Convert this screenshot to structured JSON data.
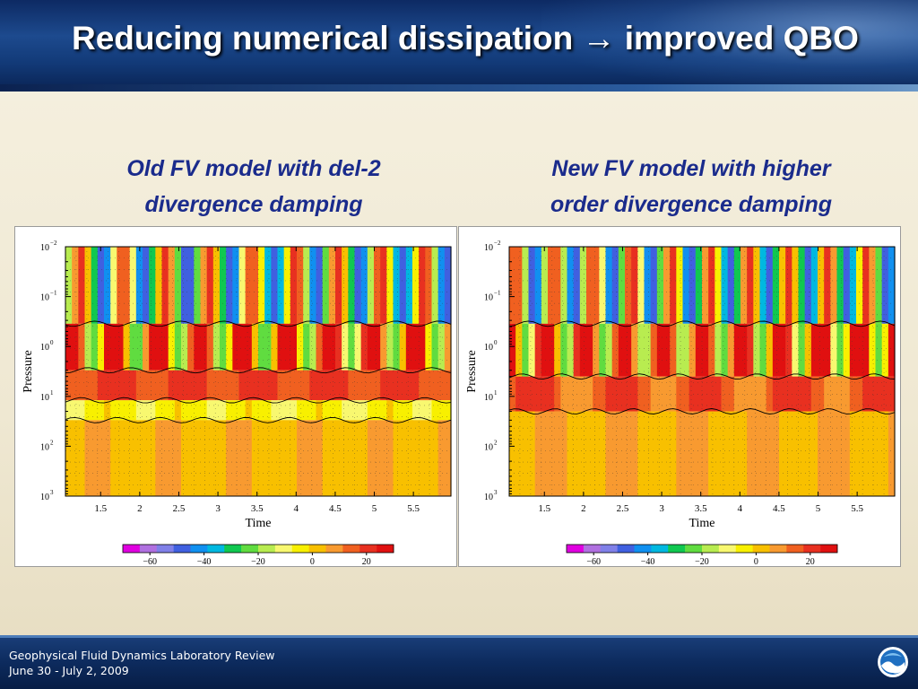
{
  "slide": {
    "title": "Reducing numerical dissipation → improved QBO",
    "footer_line1": "Geophysical Fluid Dynamics Laboratory Review",
    "footer_line2": "June 30 - July 2, 2009",
    "logo_icon": "noaa-logo-icon"
  },
  "panels": [
    {
      "subtitle_line1": "Old FV model with del-2",
      "subtitle_line2": "divergence damping"
    },
    {
      "subtitle_line1": "New FV model with higher",
      "subtitle_line2": "order divergence damping"
    }
  ],
  "chart_data": [
    {
      "type": "heatmap",
      "title": "",
      "xlabel": "Time",
      "ylabel": "Pressure",
      "x_ticks": [
        "1.5",
        "2",
        "2.5",
        "3",
        "3.5",
        "4",
        "4.5",
        "5",
        "5.5"
      ],
      "x_tick_values": [
        1.5,
        2,
        2.5,
        3,
        3.5,
        4,
        4.5,
        5,
        5.5
      ],
      "xlim": [
        1.05,
        5.98
      ],
      "y_scale": "log",
      "ylim": [
        1000,
        0.01
      ],
      "y_ticks": [
        {
          "base": "10",
          "exp": "−2",
          "value": 0.01
        },
        {
          "base": "10",
          "exp": "−1",
          "value": 0.1
        },
        {
          "base": "10",
          "exp": "0",
          "value": 1
        },
        {
          "base": "10",
          "exp": "1",
          "value": 10
        },
        {
          "base": "10",
          "exp": "2",
          "value": 100
        },
        {
          "base": "10",
          "exp": "3",
          "value": 1000
        }
      ],
      "colorbar_ticks": [
        "−60",
        "−40",
        "−20",
        "0",
        "20"
      ],
      "colorbar_values": [
        -60,
        -40,
        -20,
        0,
        20
      ],
      "colorbar_range": [
        -70,
        30
      ],
      "colorbar_colors": [
        "#e000e0",
        "#b070e0",
        "#8080e8",
        "#4060e0",
        "#1090f0",
        "#00b8e0",
        "#10c850",
        "#60dc40",
        "#b8ec50",
        "#f8f870",
        "#f8f000",
        "#f8c000",
        "#f89a30",
        "#f06020",
        "#e83020",
        "#e01010"
      ],
      "grid": "dotted",
      "note_bands": "values estimated from color fill",
      "bands": [
        {
          "p_top": 0.01,
          "p_bottom": 0.35,
          "value": -15,
          "kind": "periodic"
        },
        {
          "p_top": 0.35,
          "p_bottom": 3,
          "value": 10,
          "kind": "periodic"
        },
        {
          "p_top": 3,
          "p_bottom": 12,
          "value": 18,
          "kind": "band"
        },
        {
          "p_top": 12,
          "p_bottom": 30,
          "value": -5,
          "kind": "band"
        },
        {
          "p_top": 30,
          "p_bottom": 1000,
          "value": 3,
          "kind": "band"
        }
      ],
      "period": 0.55
    },
    {
      "type": "heatmap",
      "title": "",
      "xlabel": "Time",
      "ylabel": "Pressure",
      "x_ticks": [
        "1.5",
        "2",
        "2.5",
        "3",
        "3.5",
        "4",
        "4.5",
        "5",
        "5.5"
      ],
      "x_tick_values": [
        1.5,
        2,
        2.5,
        3,
        3.5,
        4,
        4.5,
        5,
        5.5
      ],
      "xlim": [
        1.05,
        5.98
      ],
      "y_scale": "log",
      "ylim": [
        1000,
        0.01
      ],
      "y_ticks": [
        {
          "base": "10",
          "exp": "−2",
          "value": 0.01
        },
        {
          "base": "10",
          "exp": "−1",
          "value": 0.1
        },
        {
          "base": "10",
          "exp": "0",
          "value": 1
        },
        {
          "base": "10",
          "exp": "1",
          "value": 10
        },
        {
          "base": "10",
          "exp": "2",
          "value": 100
        },
        {
          "base": "10",
          "exp": "3",
          "value": 1000
        }
      ],
      "colorbar_ticks": [
        "−60",
        "−40",
        "−20",
        "0",
        "20"
      ],
      "colorbar_values": [
        -60,
        -40,
        -20,
        0,
        20
      ],
      "colorbar_range": [
        -70,
        30
      ],
      "colorbar_colors": [
        "#e000e0",
        "#b070e0",
        "#8080e8",
        "#4060e0",
        "#1090f0",
        "#00b8e0",
        "#10c850",
        "#60dc40",
        "#b8ec50",
        "#f8f870",
        "#f8f000",
        "#f8c000",
        "#f89a30",
        "#f06020",
        "#e83020",
        "#e01010"
      ],
      "grid": "dotted",
      "note_bands": "values estimated from color fill",
      "bands": [
        {
          "p_top": 0.01,
          "p_bottom": 0.35,
          "value": -15,
          "kind": "periodic"
        },
        {
          "p_top": 0.35,
          "p_bottom": 4,
          "value": 12,
          "kind": "periodic"
        },
        {
          "p_top": 4,
          "p_bottom": 20,
          "value": 15,
          "kind": "slanted"
        },
        {
          "p_top": 20,
          "p_bottom": 1000,
          "value": 4,
          "kind": "band"
        }
      ],
      "period": 0.5
    }
  ]
}
